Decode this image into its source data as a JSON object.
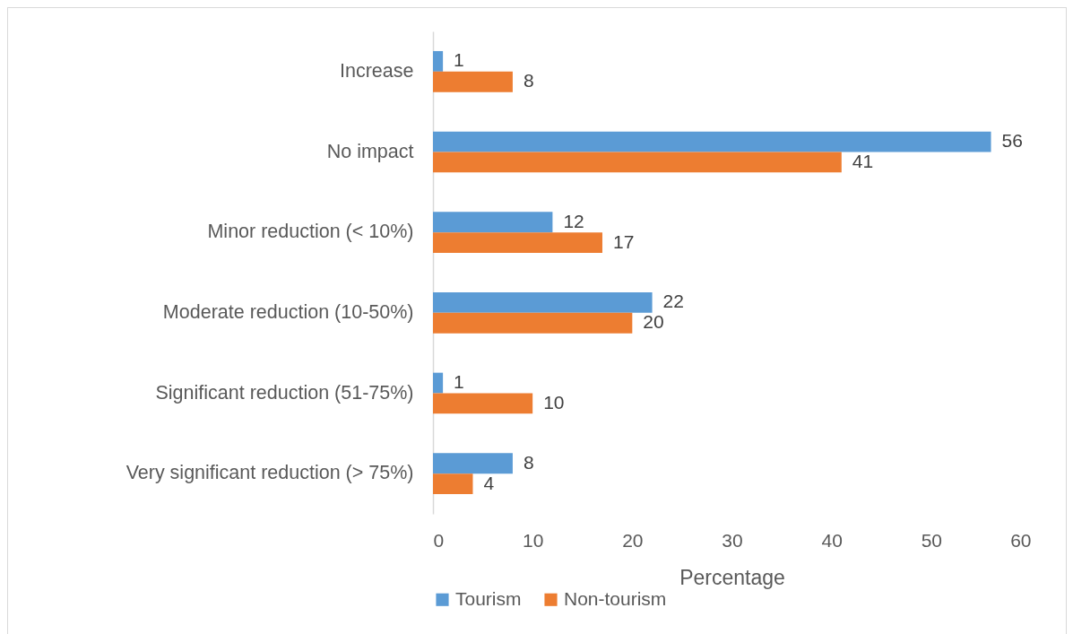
{
  "chart_data": {
    "type": "bar",
    "orientation": "horizontal",
    "categories": [
      "Increase",
      "No impact",
      "Minor reduction (< 10%)",
      "Moderate reduction (10-50%)",
      "Significant reduction (51-75%)",
      "Very significant reduction (> 75%)"
    ],
    "series": [
      {
        "name": "Tourism",
        "color": "#5b9bd5",
        "values": [
          1,
          56,
          12,
          22,
          1,
          8
        ]
      },
      {
        "name": "Non-tourism",
        "color": "#ed7d31",
        "values": [
          8,
          41,
          17,
          20,
          10,
          4
        ]
      }
    ],
    "xlabel": "Percentage",
    "xlim": [
      0,
      60
    ],
    "xticks": [
      0,
      10,
      20,
      30,
      40,
      50,
      60
    ],
    "data_labels": true,
    "legend": "bottom"
  }
}
